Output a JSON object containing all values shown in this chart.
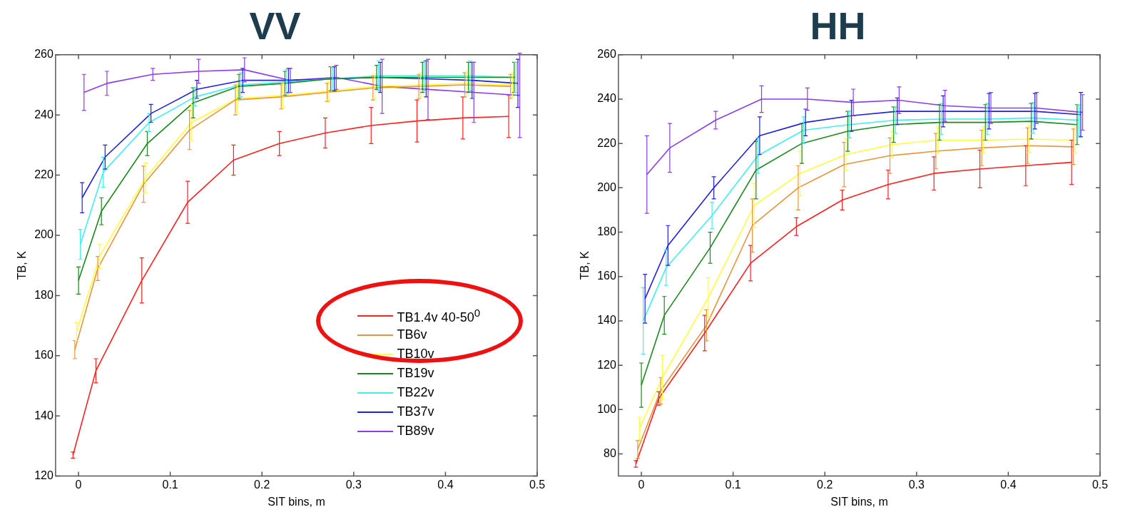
{
  "chart_data": [
    {
      "type": "line",
      "title": "VV",
      "xlabel": "SIT bins, m",
      "ylabel": "TB, K",
      "x": [
        0,
        0.025,
        0.075,
        0.125,
        0.175,
        0.225,
        0.275,
        0.325,
        0.375,
        0.425,
        0.475
      ],
      "xlim": [
        -0.025,
        0.5
      ],
      "xticks": [
        0,
        0.1,
        0.2,
        0.3,
        0.4,
        0.5
      ],
      "ylim": [
        120,
        260
      ],
      "yticks": [
        120,
        140,
        160,
        180,
        200,
        220,
        240,
        260
      ],
      "grid": false,
      "legend": "bottom right",
      "marker": "none",
      "series": [
        {
          "name": "TB1.4v 40-50$^{0}$",
          "color": "#ff2020",
          "x": [
            -0.006,
            0.019,
            0.069,
            0.119,
            0.169,
            0.219,
            0.269,
            0.319,
            0.369,
            0.419,
            0.469
          ],
          "values": [
            127,
            155,
            185,
            211,
            225,
            230.5,
            234,
            236.5,
            238,
            239,
            239.5
          ],
          "errors": [
            1,
            4,
            7.5,
            7,
            5,
            4,
            5,
            6,
            7,
            7,
            7
          ]
        },
        {
          "name": "TB6v",
          "color": "#e8943a",
          "x": [
            -0.004,
            0.021,
            0.071,
            0.121,
            0.171,
            0.221,
            0.271,
            0.321,
            0.371,
            0.421,
            0.471
          ],
          "values": [
            162,
            189,
            217,
            235,
            245,
            246,
            247.5,
            249,
            249.5,
            250,
            249.5
          ],
          "errors": [
            3,
            4,
            6,
            6.5,
            5,
            4,
            3,
            4,
            4,
            4,
            4
          ]
        },
        {
          "name": "TB10v",
          "color": "#ffff40",
          "x": [
            -0.002,
            0.023,
            0.073,
            0.123,
            0.173,
            0.223,
            0.273,
            0.323,
            0.373,
            0.423,
            0.473
          ],
          "values": [
            168,
            193,
            219,
            237.5,
            245.5,
            246.5,
            248,
            249.5,
            250,
            250.5,
            250
          ],
          "errors": [
            3,
            4,
            5,
            6,
            5,
            4,
            3,
            4,
            4,
            4,
            4
          ]
        },
        {
          "name": "TB19v",
          "color": "#1a8a1a",
          "values": [
            185,
            208,
            230.5,
            244,
            249.5,
            250.5,
            252,
            252.5,
            252.5,
            252.5,
            252.5
          ],
          "errors": [
            4.5,
            4.5,
            4,
            5,
            4,
            4,
            4,
            4,
            5,
            5,
            5
          ]
        },
        {
          "name": "TB22v",
          "color": "#40f0f0",
          "x": [
            0.002,
            0.027,
            0.077,
            0.127,
            0.177,
            0.227,
            0.277,
            0.327,
            0.377,
            0.427,
            0.477
          ],
          "values": [
            197,
            221,
            237.5,
            246,
            250,
            251,
            252,
            253,
            253,
            253,
            252.5
          ],
          "errors": [
            5,
            5,
            3,
            3,
            4,
            4,
            4,
            5,
            5,
            5,
            5
          ]
        },
        {
          "name": "TB37v",
          "color": "#2020e0",
          "x": [
            0.004,
            0.029,
            0.079,
            0.129,
            0.179,
            0.229,
            0.279,
            0.329,
            0.379,
            0.429,
            0.479
          ],
          "values": [
            212.5,
            226,
            240.5,
            248.5,
            251.5,
            251.5,
            252,
            252.5,
            252,
            251.5,
            250.5
          ],
          "errors": [
            5,
            4,
            3,
            3,
            4,
            4,
            4,
            5,
            6,
            6,
            8
          ]
        },
        {
          "name": "TB89v",
          "color": "#8a3cf0",
          "x": [
            0.006,
            0.031,
            0.081,
            0.131,
            0.181,
            0.231,
            0.281,
            0.331,
            0.381,
            0.431,
            0.481
          ],
          "values": [
            247.5,
            250.5,
            253.5,
            254.5,
            255,
            251.5,
            252.5,
            249.5,
            248.5,
            247.5,
            246.5
          ],
          "errors": [
            6,
            4,
            2,
            4,
            4,
            4,
            4,
            9,
            10,
            10,
            14
          ]
        }
      ]
    },
    {
      "type": "line",
      "title": "HH",
      "xlabel": "SIT bins, m",
      "ylabel": "TB, K",
      "x": [
        0,
        0.025,
        0.075,
        0.125,
        0.175,
        0.225,
        0.275,
        0.325,
        0.375,
        0.425,
        0.475
      ],
      "xlim": [
        -0.025,
        0.5
      ],
      "xticks": [
        0,
        0.1,
        0.2,
        0.3,
        0.4,
        0.5
      ],
      "ylim": [
        70,
        260
      ],
      "yticks": [
        80,
        100,
        120,
        140,
        160,
        180,
        200,
        220,
        240,
        260
      ],
      "grid": false,
      "legend": false,
      "marker": "none",
      "series": [
        {
          "color": "#ff2020",
          "x": [
            -0.006,
            0.019,
            0.069,
            0.119,
            0.169,
            0.219,
            0.269,
            0.319,
            0.369,
            0.419,
            0.469
          ],
          "values": [
            75.5,
            105,
            134.5,
            166,
            182.5,
            194.5,
            201.5,
            206.5,
            208.5,
            210,
            211.5
          ],
          "errors": [
            1.5,
            3,
            8,
            8,
            4,
            4.5,
            6.5,
            7.5,
            8.5,
            9,
            10
          ]
        },
        {
          "color": "#e8943a",
          "x": [
            -0.004,
            0.021,
            0.071,
            0.121,
            0.171,
            0.221,
            0.271,
            0.321,
            0.371,
            0.421,
            0.471
          ],
          "values": [
            82,
            108.5,
            138,
            183,
            200,
            210.5,
            214.5,
            216.5,
            218,
            219,
            218.5
          ],
          "errors": [
            4,
            6,
            7,
            12,
            10,
            10,
            8,
            8,
            8,
            8,
            8
          ]
        },
        {
          "color": "#ffff40",
          "x": [
            -0.002,
            0.023,
            0.073,
            0.123,
            0.173,
            0.223,
            0.273,
            0.323,
            0.373,
            0.423,
            0.473
          ],
          "values": [
            91.5,
            114.5,
            150.5,
            192,
            206.5,
            215,
            219.5,
            221.5,
            221.5,
            222,
            221.5
          ],
          "errors": [
            5,
            10,
            9,
            10,
            10,
            7,
            6,
            6,
            6,
            6,
            6
          ]
        },
        {
          "color": "#1a8a1a",
          "values": [
            111,
            142.5,
            173,
            208,
            220,
            225.5,
            228.5,
            229.5,
            229.5,
            230,
            228.5
          ],
          "errors": [
            10,
            8.5,
            7,
            13,
            9,
            9,
            8,
            8,
            8,
            8,
            9
          ]
        },
        {
          "color": "#40f0f0",
          "x": [
            0.002,
            0.027,
            0.077,
            0.127,
            0.177,
            0.227,
            0.277,
            0.327,
            0.377,
            0.427,
            0.477
          ],
          "values": [
            140,
            164,
            187.5,
            214.5,
            226,
            228.5,
            230.5,
            231,
            231,
            231.5,
            230.5
          ],
          "errors": [
            15,
            8,
            6,
            8,
            6,
            6,
            6,
            7,
            7,
            7,
            7
          ]
        },
        {
          "color": "#2020e0",
          "x": [
            0.004,
            0.029,
            0.079,
            0.129,
            0.179,
            0.229,
            0.279,
            0.329,
            0.379,
            0.429,
            0.479
          ],
          "values": [
            150,
            174,
            200,
            223.5,
            229.5,
            232.5,
            234.5,
            234.5,
            234.5,
            234.5,
            233
          ],
          "errors": [
            11,
            9,
            5,
            8.5,
            6,
            7,
            6,
            7,
            8,
            8,
            10
          ]
        },
        {
          "color": "#8a3cf0",
          "x": [
            0.006,
            0.031,
            0.081,
            0.131,
            0.181,
            0.231,
            0.281,
            0.331,
            0.381,
            0.431,
            0.481
          ],
          "values": [
            206,
            218,
            230.5,
            240,
            240,
            238.5,
            239.5,
            237,
            236,
            236,
            234
          ],
          "errors": [
            17.5,
            11,
            4,
            6,
            5,
            6,
            6,
            7,
            7,
            7,
            8
          ]
        }
      ]
    }
  ]
}
